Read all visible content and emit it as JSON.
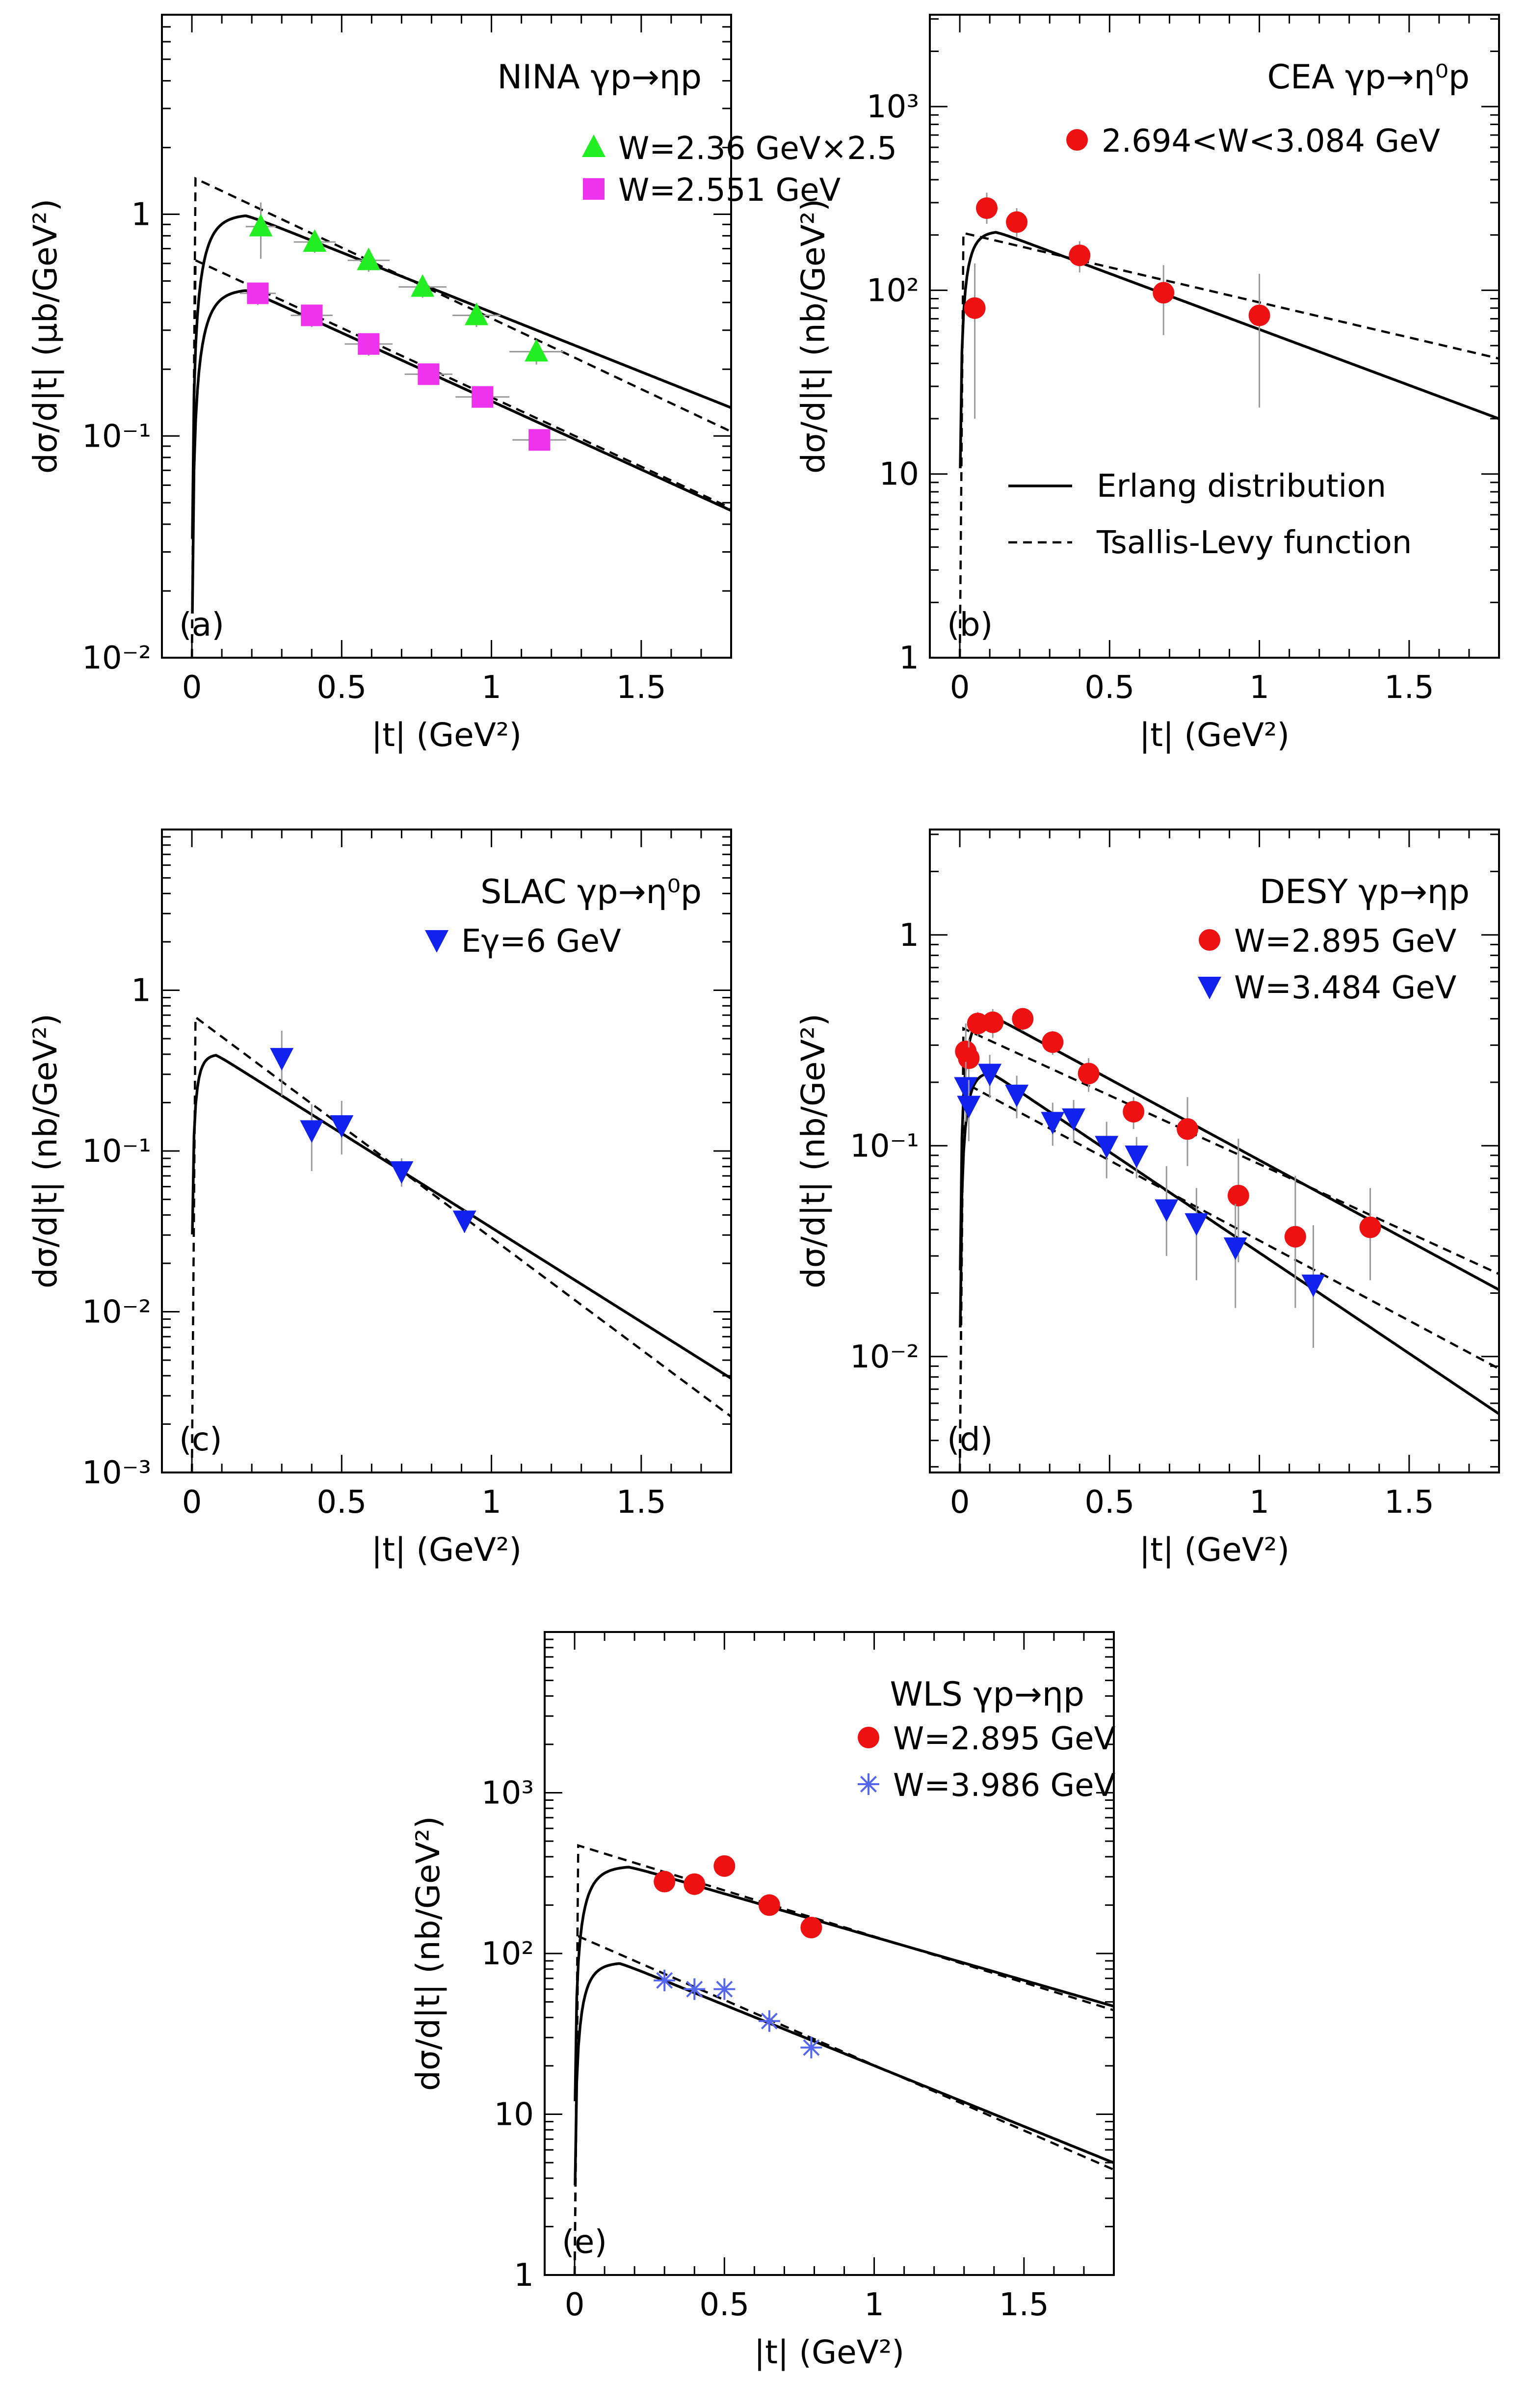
{
  "figure": {
    "legend_lines": {
      "erlang": "Erlang distribution",
      "tsallis": "Tsallis-Levy function"
    }
  },
  "chart_data": [
    {
      "id": "a",
      "type": "scatter",
      "panel_label": "(a)",
      "title": "NINA  γp→ηp",
      "xlabel": "|t|  (GeV²)",
      "ylabel": "dσ/d|t|  (μb/GeV²)",
      "xlim": [
        -0.1,
        1.8
      ],
      "ylog_lim": [
        -2,
        0.9
      ],
      "x_ticks": [
        0,
        0.5,
        1,
        1.5
      ],
      "x_tick_labels": [
        "0",
        "0.5",
        "1",
        "1.5"
      ],
      "y_tick_labels": [
        {
          "exp": 0,
          "label": "1"
        },
        {
          "exp": -1,
          "label": "10⁻¹"
        },
        {
          "exp": -2,
          "label": "10⁻²"
        }
      ],
      "legend_placement": "top-right",
      "series": [
        {
          "name": "W=2.36 GeV×2.5",
          "marker": "triangle-up",
          "color": "#22ee22",
          "x": [
            0.23,
            0.41,
            0.59,
            0.77,
            0.95,
            1.15
          ],
          "y": [
            0.88,
            0.75,
            0.62,
            0.47,
            0.35,
            0.24
          ],
          "yerr": [
            0.25,
            0.08,
            0.07,
            0.05,
            0.04,
            0.03
          ],
          "xerr": [
            0.05,
            0.07,
            0.07,
            0.08,
            0.08,
            0.09
          ],
          "erlang": {
            "A": 1.0,
            "tp": 0.18,
            "slope": 1.24
          },
          "tsallis": {
            "A": 1.45,
            "slope": 1.47
          }
        },
        {
          "name": "W=2.551 GeV",
          "marker": "square",
          "color": "#ee33ee",
          "x": [
            0.22,
            0.4,
            0.59,
            0.79,
            0.97,
            1.16
          ],
          "y": [
            0.44,
            0.35,
            0.26,
            0.19,
            0.15,
            0.096
          ],
          "yerr": [
            0.05,
            0.04,
            0.03,
            0.02,
            0.015,
            0.01
          ],
          "xerr": [
            0.06,
            0.07,
            0.08,
            0.08,
            0.09,
            0.09
          ],
          "erlang": {
            "A": 0.46,
            "tp": 0.18,
            "slope": 1.42
          },
          "tsallis": {
            "A": 0.62,
            "slope": 1.44
          }
        }
      ]
    },
    {
      "id": "b",
      "type": "scatter",
      "panel_label": "(b)",
      "title": "CEA  γp→η⁰p",
      "xlabel": "|t|  (GeV²)",
      "ylabel": "dσ/d|t|  (nb/GeV²)",
      "xlim": [
        -0.1,
        1.8
      ],
      "ylog_lim": [
        0,
        3.5
      ],
      "x_ticks": [
        0,
        0.5,
        1,
        1.5
      ],
      "x_tick_labels": [
        "0",
        "0.5",
        "1",
        "1.5"
      ],
      "y_tick_labels": [
        {
          "exp": 3,
          "label": "10³"
        },
        {
          "exp": 2,
          "label": "10²"
        },
        {
          "exp": 1,
          "label": "10"
        },
        {
          "exp": 0,
          "label": "1"
        }
      ],
      "legend_placement": "top-right",
      "series": [
        {
          "name": "2.694<W<3.084 GeV",
          "marker": "circle",
          "color": "#ee1111",
          "x": [
            0.05,
            0.09,
            0.19,
            0.4,
            0.68,
            1.0
          ],
          "y": [
            80,
            280,
            235,
            155,
            97,
            73
          ],
          "yerr_lo": [
            60,
            50,
            40,
            30,
            40,
            50
          ],
          "yerr_hi": [
            60,
            60,
            45,
            30,
            40,
            50
          ],
          "erlang": {
            "A": 210,
            "tp": 0.12,
            "slope": 1.4
          },
          "tsallis": {
            "A": 205,
            "slope": 0.88
          }
        }
      ]
    },
    {
      "id": "c",
      "type": "scatter",
      "panel_label": "(c)",
      "title": "SLAC  γp→η⁰p",
      "xlabel": "|t|  (GeV²)",
      "ylabel": "dσ/d|t|  (nb/GeV²)",
      "xlim": [
        -0.1,
        1.8
      ],
      "ylog_lim": [
        -3,
        1
      ],
      "x_ticks": [
        0,
        0.5,
        1,
        1.5
      ],
      "x_tick_labels": [
        "0",
        "0.5",
        "1",
        "1.5"
      ],
      "y_tick_labels": [
        {
          "exp": 0,
          "label": "1"
        },
        {
          "exp": -1,
          "label": "10⁻¹"
        },
        {
          "exp": -2,
          "label": "10⁻²"
        },
        {
          "exp": -3,
          "label": "10⁻³"
        }
      ],
      "legend_placement": "top-right",
      "series": [
        {
          "name": "Eγ=6 GeV",
          "marker": "triangle-down",
          "color": "#1122ee",
          "x": [
            0.3,
            0.4,
            0.5,
            0.7,
            0.91
          ],
          "y": [
            0.38,
            0.135,
            0.145,
            0.075,
            0.037
          ],
          "yerr_lo": [
            0.16,
            0.06,
            0.05,
            0.015,
            0.006
          ],
          "yerr_hi": [
            0.18,
            0.06,
            0.06,
            0.015,
            0.006
          ],
          "erlang": {
            "A": 0.4,
            "tp": 0.08,
            "slope": 2.7
          },
          "tsallis": {
            "A": 0.68,
            "slope": 3.2
          }
        }
      ]
    },
    {
      "id": "d",
      "type": "scatter",
      "panel_label": "(d)",
      "title": "DESY  γp→ηp",
      "xlabel": "|t|  (GeV²)",
      "ylabel": "dσ/d|t|  (nb/GeV²)",
      "xlim": [
        -0.1,
        1.8
      ],
      "ylog_lim": [
        -2.55,
        0.5
      ],
      "x_ticks": [
        0,
        0.5,
        1,
        1.5
      ],
      "x_tick_labels": [
        "0",
        "0.5",
        "1",
        "1.5"
      ],
      "y_tick_labels": [
        {
          "exp": 0,
          "label": "1"
        },
        {
          "exp": -1,
          "label": "10⁻¹"
        },
        {
          "exp": -2,
          "label": "10⁻²"
        }
      ],
      "legend_placement": "top-right",
      "series": [
        {
          "name": "W=2.895 GeV",
          "marker": "circle",
          "color": "#ee1111",
          "x": [
            0.02,
            0.03,
            0.06,
            0.11,
            0.21,
            0.31,
            0.43,
            0.58,
            0.76,
            0.93,
            1.12,
            1.37
          ],
          "y": [
            0.28,
            0.26,
            0.38,
            0.385,
            0.4,
            0.31,
            0.22,
            0.145,
            0.12,
            0.058,
            0.037,
            0.041
          ],
          "yerr_lo": [
            0.12,
            0.06,
            0.05,
            0.06,
            0.05,
            0.04,
            0.04,
            0.025,
            0.04,
            0.03,
            0.02,
            0.018
          ],
          "yerr_hi": [
            0.1,
            0.06,
            0.05,
            0.06,
            0.05,
            0.04,
            0.04,
            0.025,
            0.05,
            0.05,
            0.035,
            0.022
          ],
          "erlang": {
            "A": 0.42,
            "tp": 0.1,
            "slope": 1.77
          },
          "tsallis": {
            "A": 0.36,
            "slope": 1.5
          }
        },
        {
          "name": "W=3.484 GeV",
          "marker": "triangle-down",
          "color": "#1122ee",
          "x": [
            0.02,
            0.03,
            0.1,
            0.19,
            0.31,
            0.38,
            0.49,
            0.59,
            0.69,
            0.79,
            0.92,
            1.18
          ],
          "y": [
            0.19,
            0.155,
            0.22,
            0.175,
            0.13,
            0.135,
            0.1,
            0.09,
            0.05,
            0.043,
            0.033,
            0.022
          ],
          "yerr_lo": [
            0.06,
            0.05,
            0.05,
            0.04,
            0.03,
            0.03,
            0.03,
            0.02,
            0.02,
            0.02,
            0.016,
            0.011
          ],
          "yerr_hi": [
            0.06,
            0.05,
            0.05,
            0.04,
            0.03,
            0.03,
            0.03,
            0.02,
            0.03,
            0.02,
            0.02,
            0.02
          ],
          "erlang": {
            "A": 0.225,
            "tp": 0.1,
            "slope": 2.2
          },
          "tsallis": {
            "A": 0.2,
            "slope": 1.75
          }
        }
      ]
    },
    {
      "id": "e",
      "type": "scatter",
      "panel_label": "(e)",
      "title": "WLS  γp→ηp",
      "xlabel": "|t|  (GeV²)",
      "ylabel": "dσ/d|t|  (nb/GeV²)",
      "xlim": [
        -0.1,
        1.8
      ],
      "ylog_lim": [
        0,
        4
      ],
      "x_ticks": [
        0,
        0.5,
        1,
        1.5
      ],
      "x_tick_labels": [
        "0",
        "0.5",
        "1",
        "1.5"
      ],
      "y_tick_labels": [
        {
          "exp": 3,
          "label": "10³"
        },
        {
          "exp": 2,
          "label": "10²"
        },
        {
          "exp": 1,
          "label": "10"
        },
        {
          "exp": 0,
          "label": "1"
        }
      ],
      "legend_placement": "top-right",
      "series": [
        {
          "name": "W=2.895 GeV",
          "marker": "circle",
          "color": "#ee1111",
          "x": [
            0.3,
            0.4,
            0.5,
            0.65,
            0.79
          ],
          "y": [
            280,
            270,
            350,
            200,
            145
          ],
          "erlang": {
            "A": 350,
            "tp": 0.18,
            "slope": 1.24
          },
          "tsallis": {
            "A": 470,
            "slope": 1.32
          }
        },
        {
          "name": "W=3.986 GeV",
          "marker": "star",
          "color": "#5566ee",
          "x": [
            0.3,
            0.4,
            0.5,
            0.65,
            0.79
          ],
          "y": [
            68,
            60,
            60,
            38,
            26
          ],
          "erlang": {
            "A": 88,
            "tp": 0.15,
            "slope": 1.74
          },
          "tsallis": {
            "A": 128,
            "slope": 1.87
          }
        }
      ]
    }
  ]
}
